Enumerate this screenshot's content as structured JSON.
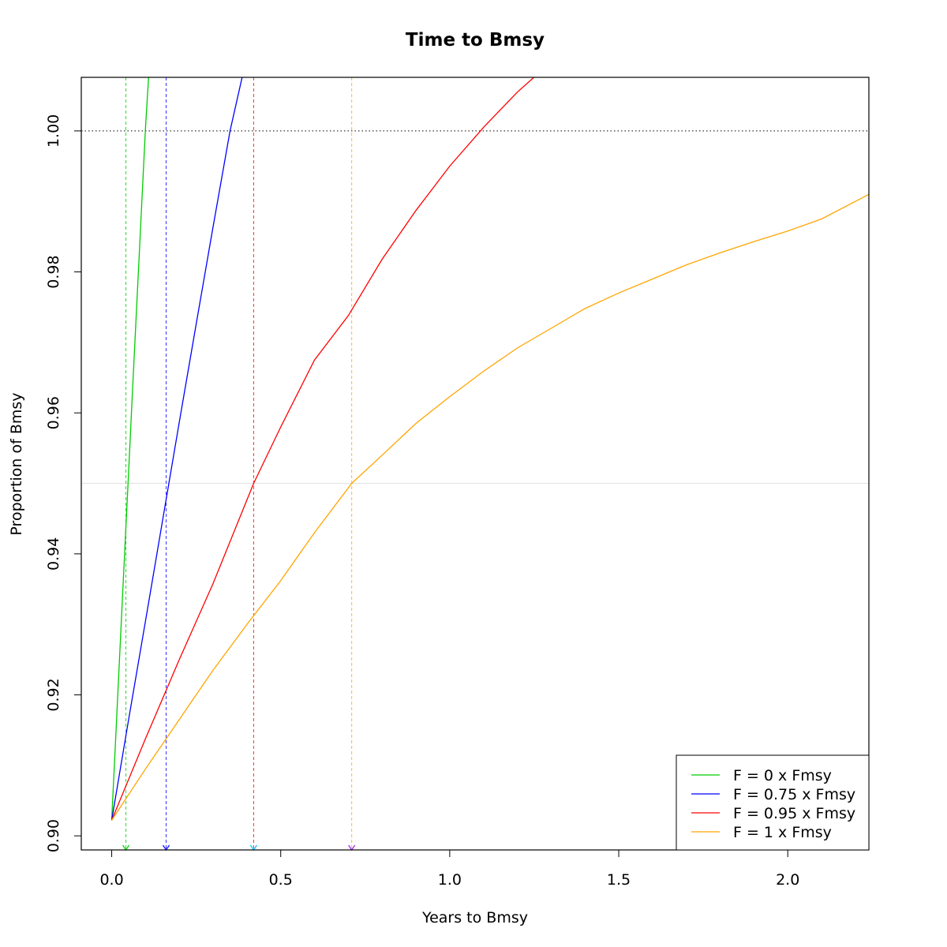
{
  "chart_data": {
    "type": "line",
    "title": "Time to Bmsy",
    "xlabel": "Years to Bmsy",
    "ylabel": "Proportion of Bmsy",
    "xlim": [
      -0.09,
      2.24
    ],
    "ylim": [
      0.898,
      1.0076
    ],
    "xticks": [
      0.0,
      0.5,
      1.0,
      1.5,
      2.0
    ],
    "xtick_labels": [
      "0.0",
      "0.5",
      "1.0",
      "1.5",
      "2.0"
    ],
    "yticks": [
      0.9,
      0.92,
      0.94,
      0.96,
      0.98,
      1.0
    ],
    "ytick_labels": [
      "0.90",
      "0.92",
      "0.94",
      "0.96",
      "0.98",
      "1.00"
    ],
    "reference_lines": {
      "target": 1.0,
      "target_color": "#000000",
      "threshold": 0.95,
      "threshold_color": "#e5e5e5"
    },
    "legend_position": "bottom-right",
    "series": [
      {
        "name": "F = 0 x Fmsy",
        "color": "#00cd00",
        "x": [
          0,
          0.01,
          0.02,
          0.03,
          0.04,
          0.05,
          0.06,
          0.07,
          0.08,
          0.09,
          0.1,
          0.11
        ],
        "y": [
          0.9022,
          0.912,
          0.922,
          0.932,
          0.9419,
          0.9517,
          0.9615,
          0.9713,
          0.981,
          0.9908,
          1.0005,
          1.0084
        ],
        "time_to_threshold": 0.042,
        "marker_color": "#00cd00"
      },
      {
        "name": "F = 0.75 x Fmsy",
        "color": "#0000ff",
        "x": [
          0,
          0.05,
          0.1,
          0.15,
          0.2,
          0.25,
          0.3,
          0.35,
          0.39
        ],
        "y": [
          0.9022,
          0.9165,
          0.9305,
          0.9446,
          0.9587,
          0.9726,
          0.9864,
          1.0,
          1.0085
        ],
        "time_to_threshold": 0.161,
        "marker_color": "#0000ff"
      },
      {
        "name": "F = 0.95 x Fmsy",
        "color": "#ff0000",
        "x": [
          0,
          0.1,
          0.2,
          0.3,
          0.42,
          0.5,
          0.6,
          0.7,
          0.8,
          0.9,
          1.0,
          1.1,
          1.2,
          1.27
        ],
        "y": [
          0.9022,
          0.9138,
          0.925,
          0.9358,
          0.95,
          0.958,
          0.9675,
          0.9738,
          0.9818,
          0.9887,
          0.995,
          1.0005,
          1.0055,
          1.0085
        ],
        "time_to_threshold": 0.42,
        "marker_color": "#00bfff"
      },
      {
        "name": "F = 1 x Fmsy",
        "color": "#ffa500",
        "x": [
          0,
          0.1,
          0.2,
          0.3,
          0.4,
          0.5,
          0.6,
          0.71,
          0.8,
          0.9,
          1.0,
          1.1,
          1.2,
          1.3,
          1.4,
          1.5,
          1.6,
          1.7,
          1.8,
          1.9,
          2.0,
          2.1,
          2.24
        ],
        "y": [
          0.9022,
          0.9095,
          0.9165,
          0.9235,
          0.93,
          0.9362,
          0.943,
          0.95,
          0.954,
          0.9585,
          0.9623,
          0.9659,
          0.9692,
          0.972,
          0.9748,
          0.977,
          0.979,
          0.981,
          0.9827,
          0.9843,
          0.9858,
          0.9875,
          0.991
        ],
        "time_to_threshold": 0.71,
        "marker_color": "#a020f0"
      }
    ]
  }
}
